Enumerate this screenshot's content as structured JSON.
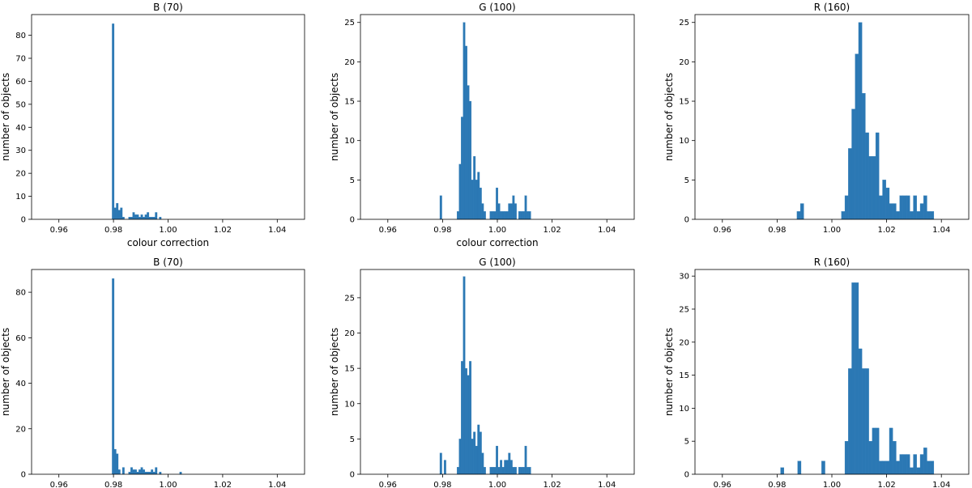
{
  "colors": {
    "bar": "#2b78b4",
    "axis": "#000000",
    "background": "#ffffff"
  },
  "chart_data": [
    {
      "type": "bar",
      "title": "B (70)",
      "xlabel": "colour correction",
      "ylabel": "number of objects",
      "xlim": [
        0.95,
        1.05
      ],
      "ylim": [
        0,
        89
      ],
      "xticks": [
        "0.96",
        "0.98",
        "1.00",
        "1.02",
        "1.04"
      ],
      "yticks": [
        "0",
        "10",
        "20",
        "30",
        "40",
        "50",
        "60",
        "70",
        "80"
      ],
      "bin_width": 0.00075,
      "bins": [
        [
          0.9795,
          85
        ],
        [
          0.98025,
          5
        ],
        [
          0.981,
          7
        ],
        [
          0.98175,
          4
        ],
        [
          0.9825,
          5
        ],
        [
          0.98325,
          1
        ],
        [
          0.9855,
          1
        ],
        [
          0.98625,
          1
        ],
        [
          0.987,
          3
        ],
        [
          0.98775,
          2
        ],
        [
          0.9885,
          2
        ],
        [
          0.98925,
          1
        ],
        [
          0.99,
          2
        ],
        [
          0.99075,
          1
        ],
        [
          0.9915,
          2
        ],
        [
          0.99225,
          3
        ],
        [
          0.993,
          1
        ],
        [
          0.99375,
          1
        ],
        [
          0.9945,
          1
        ],
        [
          0.99525,
          3
        ],
        [
          0.99675,
          1
        ]
      ]
    },
    {
      "type": "bar",
      "title": "G (100)",
      "xlabel": "colour correction",
      "ylabel": "number of objects",
      "xlim": [
        0.95,
        1.05
      ],
      "ylim": [
        0,
        26
      ],
      "xticks": [
        "0.96",
        "0.98",
        "1.00",
        "1.02",
        "1.04"
      ],
      "yticks": [
        "0",
        "5",
        "10",
        "15",
        "20",
        "25"
      ],
      "bin_width": 0.00075,
      "bins": [
        [
          0.979,
          3
        ],
        [
          0.98525,
          1
        ],
        [
          0.986,
          7
        ],
        [
          0.98675,
          13
        ],
        [
          0.9875,
          25
        ],
        [
          0.98825,
          22
        ],
        [
          0.989,
          17
        ],
        [
          0.98975,
          15
        ],
        [
          0.9905,
          5
        ],
        [
          0.99125,
          8
        ],
        [
          0.992,
          5
        ],
        [
          0.99275,
          6
        ],
        [
          0.9935,
          4
        ],
        [
          0.99425,
          2
        ],
        [
          0.995,
          1
        ],
        [
          0.99725,
          1
        ],
        [
          0.998,
          1
        ],
        [
          0.99875,
          1
        ],
        [
          0.9995,
          4
        ],
        [
          1.00025,
          2
        ],
        [
          1.001,
          1
        ],
        [
          1.00175,
          1
        ],
        [
          1.0025,
          1
        ],
        [
          1.00325,
          1
        ],
        [
          1.004,
          2
        ],
        [
          1.00475,
          2
        ],
        [
          1.0055,
          3
        ],
        [
          1.00625,
          2
        ],
        [
          1.00775,
          1
        ],
        [
          1.0085,
          1
        ],
        [
          1.00925,
          1
        ],
        [
          1.01,
          3
        ],
        [
          1.01075,
          1
        ],
        [
          1.0115,
          1
        ]
      ]
    },
    {
      "type": "bar",
      "title": "R (160)",
      "xlabel": "",
      "ylabel": "number of objects",
      "xlim": [
        0.95,
        1.05
      ],
      "ylim": [
        0,
        26
      ],
      "xticks": [
        "0.96",
        "0.98",
        "1.00",
        "1.02",
        "1.04"
      ],
      "yticks": [
        "0",
        "5",
        "10",
        "15",
        "20",
        "25"
      ],
      "bin_width": 0.00125,
      "bins": [
        [
          0.98725,
          1
        ],
        [
          0.9885,
          2
        ],
        [
          1.0035,
          1
        ],
        [
          1.00475,
          3
        ],
        [
          1.006,
          9
        ],
        [
          1.00725,
          14
        ],
        [
          1.0085,
          21
        ],
        [
          1.00975,
          25
        ],
        [
          1.011,
          16
        ],
        [
          1.01225,
          11
        ],
        [
          1.0135,
          8
        ],
        [
          1.01475,
          8
        ],
        [
          1.016,
          11
        ],
        [
          1.01725,
          3
        ],
        [
          1.0185,
          5
        ],
        [
          1.01975,
          4
        ],
        [
          1.021,
          2
        ],
        [
          1.02225,
          2
        ],
        [
          1.0235,
          1
        ],
        [
          1.02475,
          3
        ],
        [
          1.026,
          3
        ],
        [
          1.02725,
          3
        ],
        [
          1.0285,
          1
        ],
        [
          1.02975,
          3
        ],
        [
          1.031,
          1
        ],
        [
          1.03225,
          2
        ],
        [
          1.0335,
          3
        ],
        [
          1.03475,
          1
        ],
        [
          1.036,
          1
        ]
      ]
    },
    {
      "type": "bar",
      "title": "B (70)",
      "xlabel": "",
      "ylabel": "number of objects",
      "xlim": [
        0.95,
        1.05
      ],
      "ylim": [
        0,
        90
      ],
      "xticks": [
        "0.96",
        "0.98",
        "1.00",
        "1.02",
        "1.04"
      ],
      "yticks": [
        "0",
        "20",
        "40",
        "60",
        "80"
      ],
      "bin_width": 0.00075,
      "bins": [
        [
          0.9795,
          86
        ],
        [
          0.98025,
          11
        ],
        [
          0.981,
          9
        ],
        [
          0.98175,
          2
        ],
        [
          0.9825,
          0
        ],
        [
          0.98325,
          3
        ],
        [
          0.9855,
          1
        ],
        [
          0.98625,
          3
        ],
        [
          0.987,
          2
        ],
        [
          0.98775,
          2
        ],
        [
          0.9885,
          1
        ],
        [
          0.98925,
          2
        ],
        [
          0.99,
          3
        ],
        [
          0.99075,
          2
        ],
        [
          0.9915,
          1
        ],
        [
          0.99225,
          1
        ],
        [
          0.993,
          1
        ],
        [
          0.99375,
          2
        ],
        [
          0.9945,
          1
        ],
        [
          0.99525,
          3
        ],
        [
          0.99675,
          1
        ],
        [
          1.00425,
          1
        ]
      ]
    },
    {
      "type": "bar",
      "title": "G (100)",
      "xlabel": "",
      "ylabel": "number of objects",
      "xlim": [
        0.95,
        1.05
      ],
      "ylim": [
        0,
        29
      ],
      "xticks": [
        "0.96",
        "0.98",
        "1.00",
        "1.02",
        "1.04"
      ],
      "yticks": [
        "0",
        "5",
        "10",
        "15",
        "20",
        "25"
      ],
      "bin_width": 0.00075,
      "bins": [
        [
          0.979,
          3
        ],
        [
          0.9805,
          2
        ],
        [
          0.98525,
          1
        ],
        [
          0.986,
          5
        ],
        [
          0.98675,
          16
        ],
        [
          0.9875,
          28
        ],
        [
          0.98825,
          15
        ],
        [
          0.989,
          14
        ],
        [
          0.98975,
          16
        ],
        [
          0.9905,
          5
        ],
        [
          0.99125,
          6
        ],
        [
          0.992,
          4
        ],
        [
          0.99275,
          7
        ],
        [
          0.9935,
          6
        ],
        [
          0.99425,
          3
        ],
        [
          0.995,
          1
        ],
        [
          0.99725,
          1
        ],
        [
          0.998,
          1
        ],
        [
          0.99875,
          1
        ],
        [
          0.9995,
          4
        ],
        [
          1.00025,
          1
        ],
        [
          1.001,
          2
        ],
        [
          1.00175,
          1
        ],
        [
          1.0025,
          2
        ],
        [
          1.00325,
          2
        ],
        [
          1.004,
          3
        ],
        [
          1.00475,
          2
        ],
        [
          1.0055,
          1
        ],
        [
          1.00625,
          1
        ],
        [
          1.00775,
          1
        ],
        [
          1.0085,
          1
        ],
        [
          1.00925,
          1
        ],
        [
          1.01,
          4
        ],
        [
          1.01075,
          1
        ],
        [
          1.0115,
          1
        ]
      ]
    },
    {
      "type": "bar",
      "title": "R (160)",
      "xlabel": "",
      "ylabel": "number of objects",
      "xlim": [
        0.95,
        1.05
      ],
      "ylim": [
        0,
        31
      ],
      "xticks": [
        "0.96",
        "0.98",
        "1.00",
        "1.02",
        "1.04"
      ],
      "yticks": [
        "0",
        "5",
        "10",
        "15",
        "20",
        "25",
        "30"
      ],
      "bin_width": 0.00125,
      "bins": [
        [
          0.98125,
          1
        ],
        [
          0.9875,
          2
        ],
        [
          0.99625,
          2
        ],
        [
          1.00475,
          5
        ],
        [
          1.006,
          16
        ],
        [
          1.00725,
          29
        ],
        [
          1.0085,
          29
        ],
        [
          1.00975,
          19
        ],
        [
          1.011,
          16
        ],
        [
          1.01225,
          16
        ],
        [
          1.0135,
          5
        ],
        [
          1.01475,
          7
        ],
        [
          1.016,
          7
        ],
        [
          1.01725,
          2
        ],
        [
          1.0185,
          2
        ],
        [
          1.01975,
          2
        ],
        [
          1.021,
          7
        ],
        [
          1.02225,
          5
        ],
        [
          1.0235,
          2
        ],
        [
          1.02475,
          3
        ],
        [
          1.026,
          3
        ],
        [
          1.02725,
          3
        ],
        [
          1.0285,
          1
        ],
        [
          1.02975,
          3
        ],
        [
          1.031,
          1
        ],
        [
          1.03225,
          3
        ],
        [
          1.0335,
          4
        ],
        [
          1.03475,
          2
        ],
        [
          1.036,
          2
        ]
      ]
    }
  ]
}
